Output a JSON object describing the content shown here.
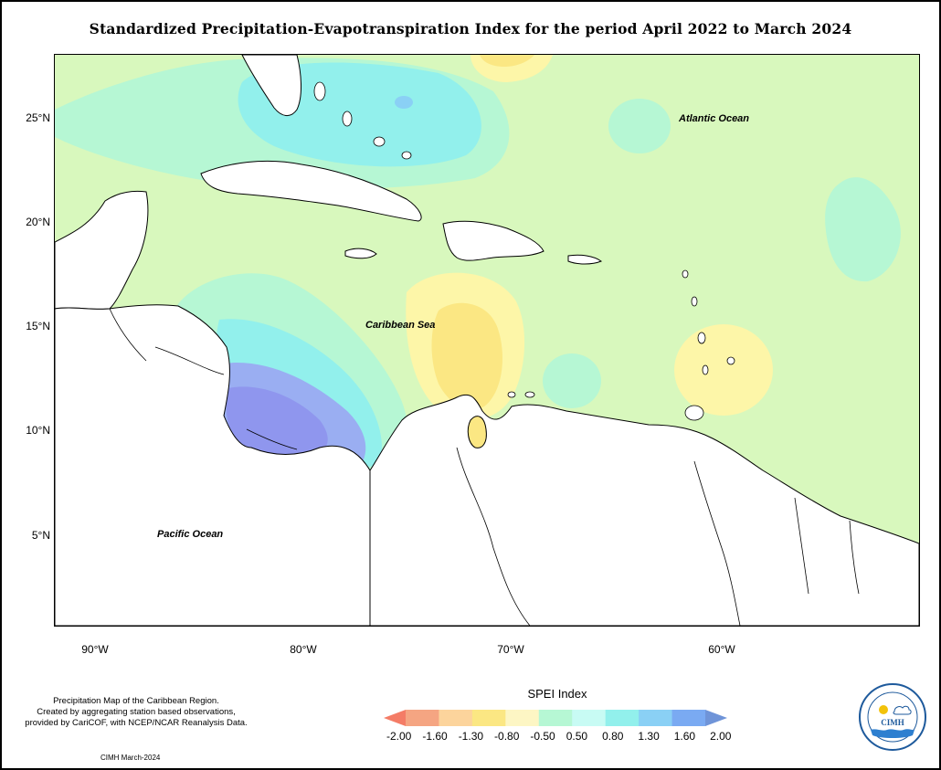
{
  "title": "Standardized Precipitation-Evapotranspiration Index for the period April 2022 to March 2024",
  "map": {
    "lat_ticks": [
      "25°N",
      "20°N",
      "15°N",
      "10°N",
      "5°N"
    ],
    "lon_ticks": [
      "90°W",
      "80°W",
      "70°W",
      "60°W"
    ],
    "ocean_labels": {
      "atlantic": "Atlantic Ocean",
      "caribbean": "Caribbean Sea",
      "pacific": "Pacific Ocean"
    },
    "colors": {
      "land": "#ffffff",
      "near_normal": "#d8f8bd",
      "moderately_wet": "#b6f7d4",
      "very_wet": "#92f0ec",
      "severely_wet": "#8ad0f5",
      "extremely_wet_1": "#9aaef2",
      "extremely_wet_2": "#8f96ee",
      "moderately_dry": "#fdf6a8",
      "very_dry": "#fbe783",
      "severely_dry": "#fccf8a"
    }
  },
  "footnote": {
    "line1": "Precipitation Map of the Caribbean Region.",
    "line2": "Created by aggregating station based observations,",
    "line3": "provided by CariCOF, with NCEP/NCAR Reanalysis Data."
  },
  "credit": "CIMH March-2024",
  "legend": {
    "title": "SPEI Index",
    "labels": [
      "-2.00",
      "-1.60",
      "-1.30",
      "-0.80",
      "-0.50",
      "0.50",
      "0.80",
      "1.30",
      "1.60",
      "2.00"
    ],
    "colors": [
      "#f47c66",
      "#f5a582",
      "#fcd49c",
      "#fbe783",
      "#fdf6c4",
      "#b6f7d4",
      "#c8fbf4",
      "#92f0ec",
      "#8ad0f5",
      "#7aaaf2",
      "#6f94d8"
    ]
  },
  "logo": {
    "text": "CIMH",
    "ring_text": "Caribbean Institute for Meteorology and Hydrology"
  }
}
